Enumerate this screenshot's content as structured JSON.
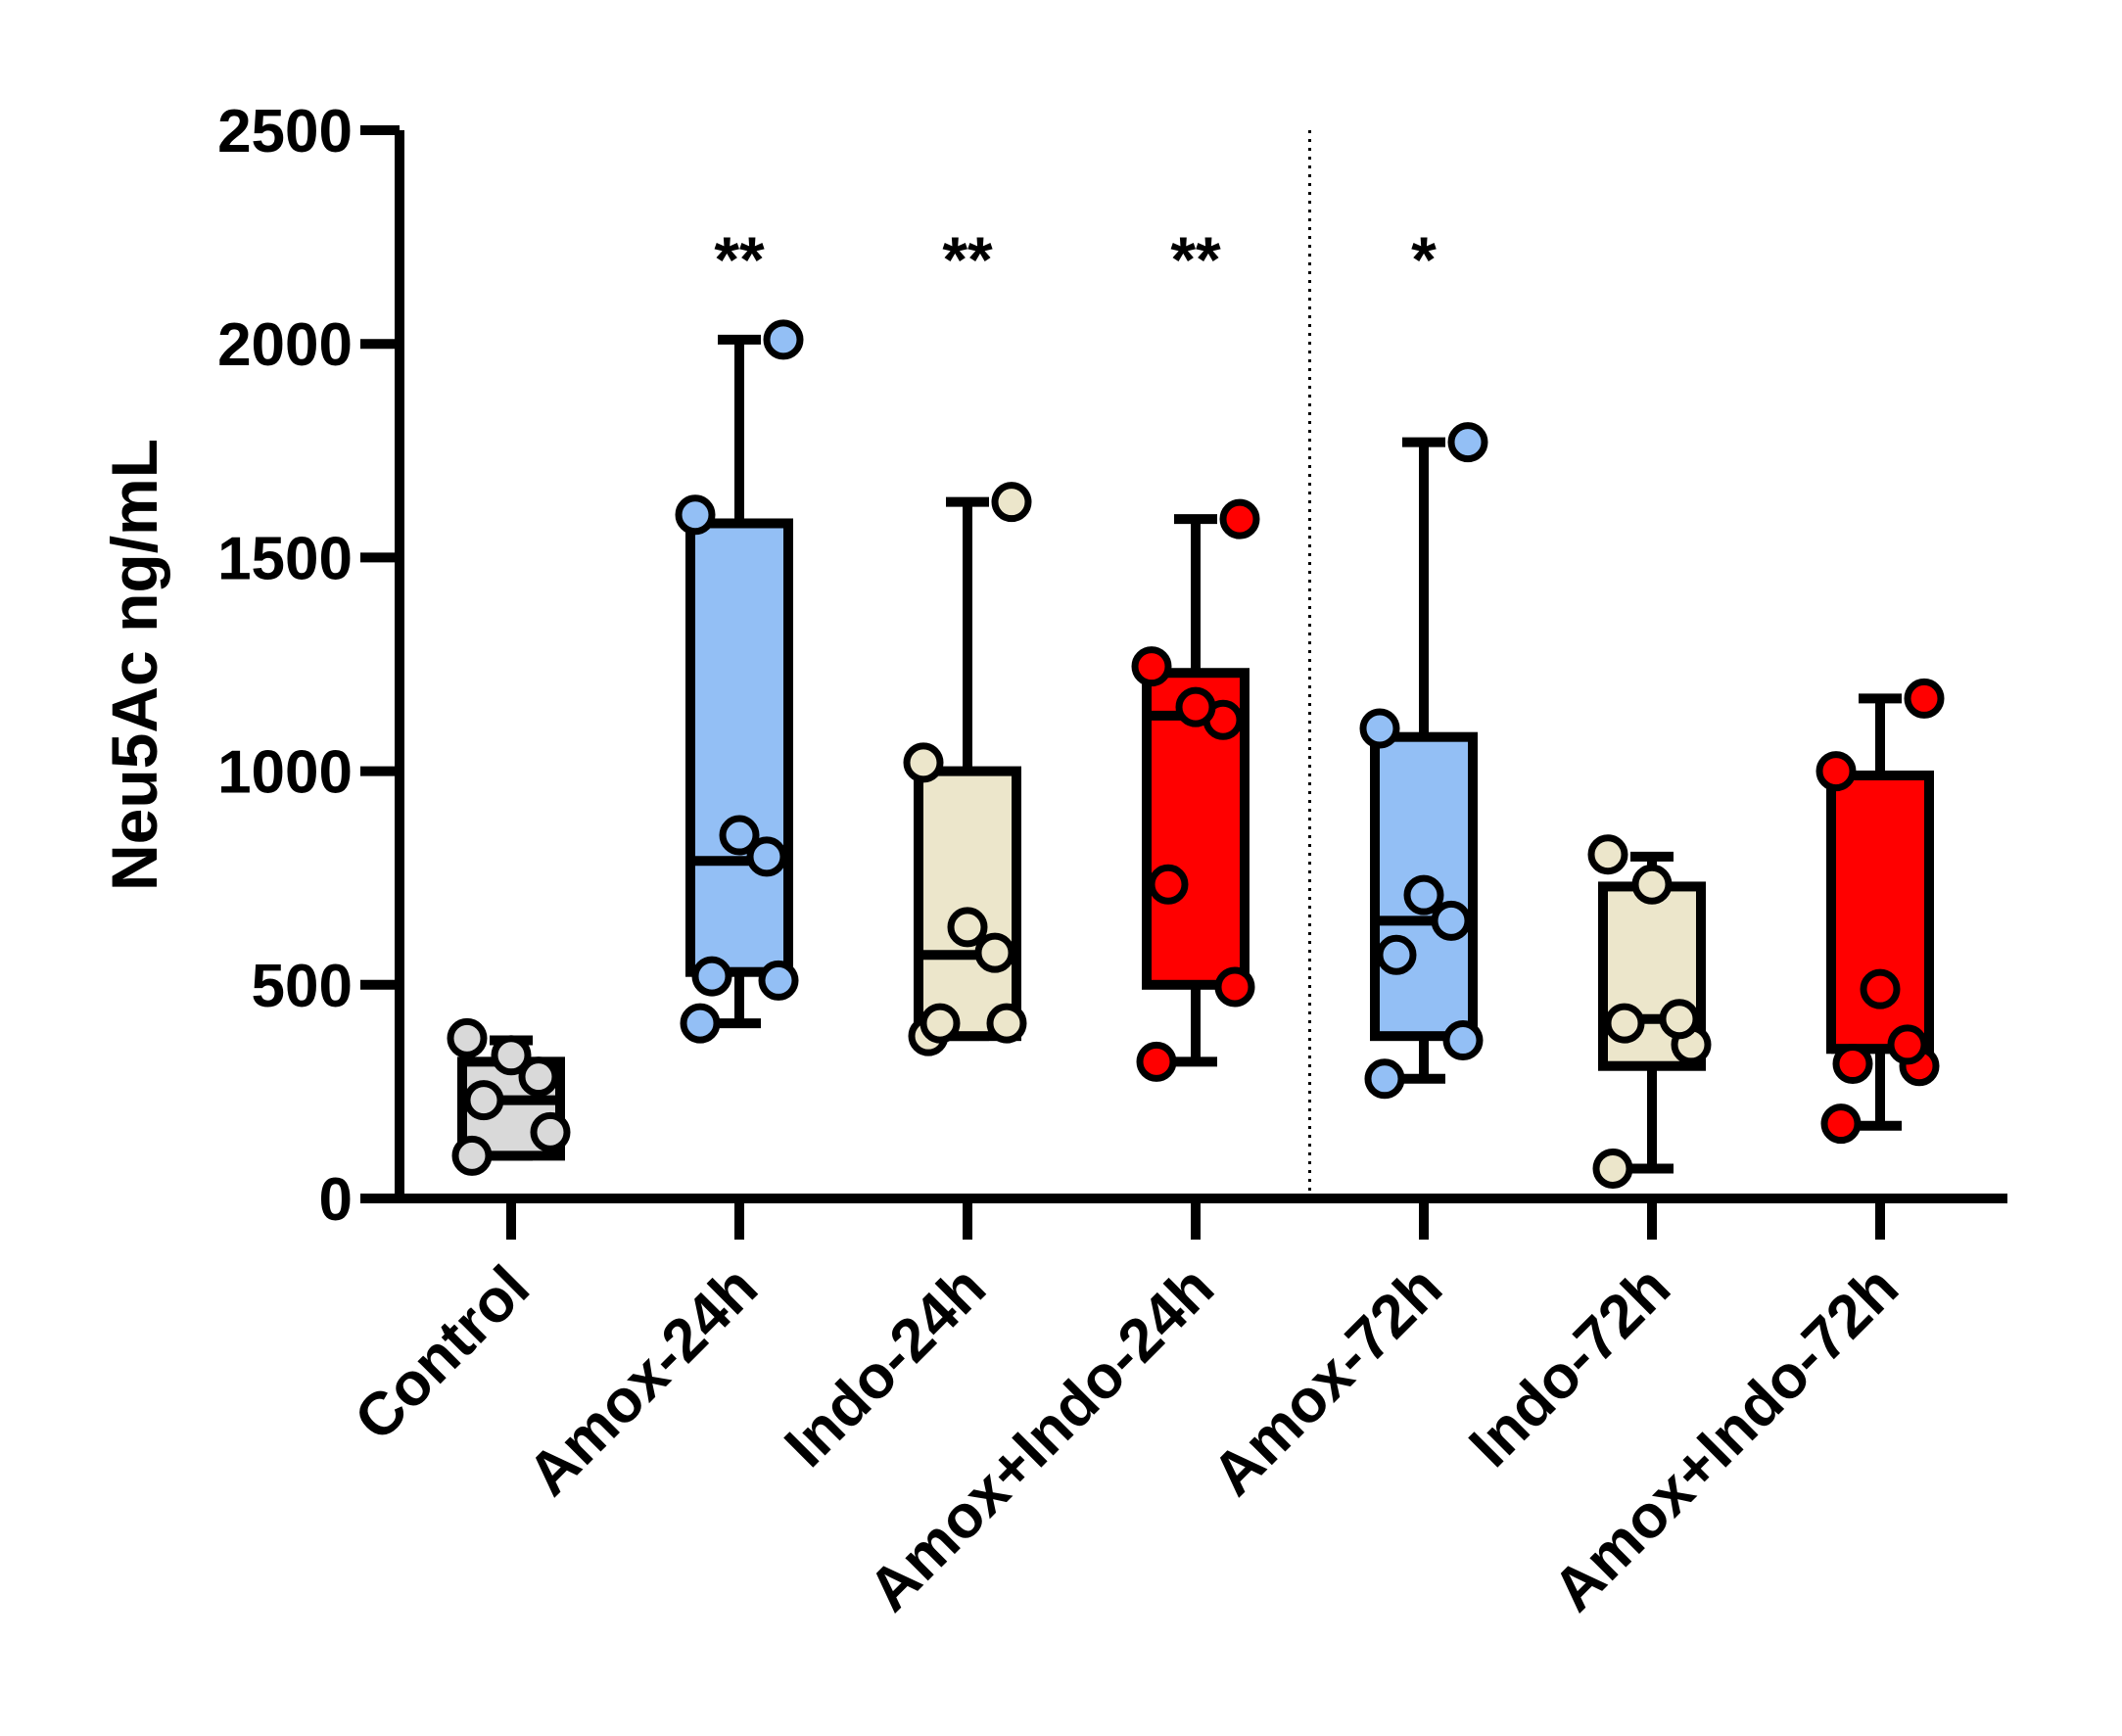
{
  "chart_data": {
    "type": "box",
    "ylabel": "Neu5Ac ng/mL",
    "ylim": [
      0,
      2500
    ],
    "yticks": [
      0,
      500,
      1000,
      1500,
      2000,
      2500
    ],
    "ytick_labels": [
      "0",
      "500",
      "1000",
      "1500",
      "2000",
      "2500"
    ],
    "divider_after_category": 3,
    "groups": [
      {
        "label": "Control",
        "color": "#d9d9d9",
        "whisker_low": 100,
        "q1": 100,
        "median": 230,
        "q3": 320,
        "whisker_high": 370,
        "significance": "",
        "points": [
          100,
          155,
          230,
          285,
          335,
          375
        ]
      },
      {
        "label": "Amox-24h",
        "color": "#93bff5",
        "whisker_low": 410,
        "q1": 530,
        "median": 790,
        "q3": 1580,
        "whisker_high": 2010,
        "significance": "**",
        "points": [
          410,
          510,
          520,
          800,
          850,
          1600,
          2010
        ]
      },
      {
        "label": "Indo-24h",
        "color": "#ece6cb",
        "whisker_low": 380,
        "q1": 380,
        "median": 570,
        "q3": 1000,
        "whisker_high": 1630,
        "significance": "**",
        "points": [
          380,
          410,
          410,
          575,
          635,
          1020,
          1630
        ]
      },
      {
        "label": "Amox+Indo-24h",
        "color": "#ff0000",
        "whisker_low": 320,
        "q1": 500,
        "median": 1130,
        "q3": 1230,
        "whisker_high": 1590,
        "significance": "**",
        "points": [
          320,
          495,
          735,
          1120,
          1150,
          1245,
          1590
        ]
      },
      {
        "label": "Amox-72h",
        "color": "#93bff5",
        "whisker_low": 280,
        "q1": 380,
        "median": 650,
        "q3": 1080,
        "whisker_high": 1770,
        "significance": "*",
        "points": [
          280,
          370,
          570,
          650,
          710,
          1100,
          1770
        ]
      },
      {
        "label": "Indo-72h",
        "color": "#ece6cb",
        "whisker_low": 70,
        "q1": 310,
        "median": 420,
        "q3": 730,
        "whisker_high": 800,
        "significance": "",
        "points": [
          70,
          360,
          410,
          420,
          735,
          805
        ]
      },
      {
        "label": "Amox+Indo-72h",
        "color": "#ff0000",
        "whisker_low": 170,
        "q1": 350,
        "median": 350,
        "q3": 990,
        "whisker_high": 1170,
        "significance": "",
        "points": [
          175,
          310,
          315,
          360,
          490,
          1000,
          1170
        ]
      }
    ]
  }
}
